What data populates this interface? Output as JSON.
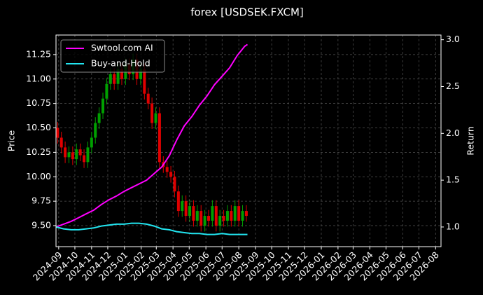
{
  "chart_data": {
    "type": "candlestick",
    "title": "forex [USDSEK.FXCM]",
    "ylabel": "Price",
    "y2label": "Return",
    "grid": true,
    "legend": "upper left",
    "up_color": "#00a000",
    "down_color": "#e00000",
    "xlim": [
      -5,
      709
    ],
    "xticks": [
      {
        "value": 0,
        "label": "2024-09"
      },
      {
        "value": 30,
        "label": "2024-10"
      },
      {
        "value": 61,
        "label": "2024-11"
      },
      {
        "value": 91,
        "label": "2024-12"
      },
      {
        "value": 122,
        "label": "2025-01"
      },
      {
        "value": 153,
        "label": "2025-02"
      },
      {
        "value": 181,
        "label": "2025-03"
      },
      {
        "value": 212,
        "label": "2025-04"
      },
      {
        "value": 242,
        "label": "2025-05"
      },
      {
        "value": 273,
        "label": "2025-06"
      },
      {
        "value": 303,
        "label": "2025-07"
      },
      {
        "value": 334,
        "label": "2025-08"
      },
      {
        "value": 365,
        "label": "2025-09"
      },
      {
        "value": 395,
        "label": "2025-10"
      },
      {
        "value": 426,
        "label": "2025-11"
      },
      {
        "value": 456,
        "label": "2025-12"
      },
      {
        "value": 487,
        "label": "2026-01"
      },
      {
        "value": 518,
        "label": "2026-02"
      },
      {
        "value": 546,
        "label": "2026-03"
      },
      {
        "value": 577,
        "label": "2026-04"
      },
      {
        "value": 607,
        "label": "2026-05"
      },
      {
        "value": 638,
        "label": "2026-06"
      },
      {
        "value": 668,
        "label": "2026-07"
      },
      {
        "value": 699,
        "label": "2026-08"
      }
    ],
    "ylim": [
      9.285,
      11.45
    ],
    "yticks": [
      {
        "value": 9.5,
        "label": "9.50"
      },
      9.75,
      {
        "value": 10,
        "label": "10.00"
      },
      10.25,
      {
        "value": 10.5,
        "label": "10.50"
      },
      10.75,
      {
        "value": 11,
        "label": "11.00"
      },
      11.25
    ],
    "y2lim": [
      0.79,
      3.05
    ],
    "y2ticks": [
      {
        "value": 1,
        "label": "1.0"
      },
      1.5,
      {
        "value": 2,
        "label": "2.0"
      },
      2.5,
      {
        "value": 3,
        "label": "3.0"
      }
    ],
    "candles": {
      "x": [
        -2,
        5,
        12,
        19,
        26,
        33,
        40,
        47,
        54,
        61,
        68,
        75,
        82,
        89,
        96,
        103,
        110,
        117,
        124,
        131,
        138,
        145,
        152,
        159,
        166,
        173,
        180,
        187,
        194,
        201,
        208,
        215,
        222,
        229,
        236,
        243,
        250,
        257,
        264,
        271,
        278,
        285,
        292,
        299,
        306,
        313,
        320,
        327,
        334,
        341,
        348
      ],
      "open": [
        10.5,
        10.4,
        10.3,
        10.2,
        10.25,
        10.18,
        10.28,
        10.22,
        10.15,
        10.3,
        10.4,
        10.55,
        10.65,
        10.8,
        10.95,
        11.05,
        10.95,
        11.1,
        11.0,
        11.15,
        11.05,
        11.2,
        11.0,
        11.1,
        10.85,
        10.75,
        10.55,
        10.65,
        10.15,
        10.1,
        10.05,
        10.0,
        9.85,
        9.65,
        9.75,
        9.6,
        9.7,
        9.55,
        9.65,
        9.5,
        9.6,
        9.55,
        9.7,
        9.5,
        9.6,
        9.55,
        9.65,
        9.55,
        9.7,
        9.55,
        9.65
      ],
      "high": [
        10.56,
        10.46,
        10.36,
        10.31,
        10.31,
        10.34,
        10.34,
        10.28,
        10.36,
        10.46,
        10.61,
        10.71,
        10.86,
        11.01,
        11.11,
        11.11,
        11.16,
        11.16,
        11.21,
        11.21,
        11.26,
        11.26,
        11.16,
        11.16,
        10.91,
        10.81,
        10.71,
        10.71,
        10.21,
        10.16,
        10.11,
        10.06,
        9.91,
        9.81,
        9.81,
        9.76,
        9.76,
        9.71,
        9.71,
        9.66,
        9.66,
        9.76,
        9.76,
        9.66,
        9.66,
        9.71,
        9.71,
        9.76,
        9.76,
        9.71,
        9.71
      ],
      "low": [
        10.34,
        10.24,
        10.14,
        10.14,
        10.12,
        10.12,
        10.16,
        10.09,
        10.09,
        10.24,
        10.34,
        10.49,
        10.59,
        10.74,
        10.89,
        10.89,
        10.89,
        10.94,
        10.94,
        10.99,
        10.99,
        10.94,
        10.94,
        10.79,
        10.69,
        10.49,
        10.49,
        10.09,
        10.04,
        9.99,
        9.94,
        9.79,
        9.59,
        9.59,
        9.54,
        9.54,
        9.49,
        9.49,
        9.44,
        9.44,
        9.49,
        9.49,
        9.44,
        9.44,
        9.49,
        9.49,
        9.49,
        9.49,
        9.49,
        9.49,
        9.54
      ],
      "close": [
        10.4,
        10.3,
        10.2,
        10.25,
        10.18,
        10.28,
        10.22,
        10.15,
        10.3,
        10.4,
        10.55,
        10.65,
        10.8,
        10.95,
        11.05,
        10.95,
        11.1,
        11.0,
        11.15,
        11.05,
        11.2,
        11.0,
        11.1,
        10.85,
        10.75,
        10.55,
        10.65,
        10.15,
        10.1,
        10.05,
        10.0,
        9.85,
        9.65,
        9.75,
        9.6,
        9.7,
        9.55,
        9.65,
        9.5,
        9.6,
        9.55,
        9.7,
        9.5,
        9.6,
        9.55,
        9.65,
        9.55,
        9.7,
        9.55,
        9.65,
        9.6
      ]
    },
    "x": [
      -5,
      9,
      23,
      37,
      51,
      65,
      79,
      93,
      107,
      121,
      135,
      149,
      163,
      177,
      191,
      205,
      219,
      233,
      247,
      261,
      275,
      289,
      303,
      317,
      331,
      345,
      350
    ],
    "series": [
      {
        "name": "Swtool.com AI",
        "color": "#ff00ff",
        "axis": "y2",
        "values": [
          1.0,
          1.03,
          1.06,
          1.1,
          1.14,
          1.18,
          1.24,
          1.29,
          1.33,
          1.38,
          1.42,
          1.46,
          1.5,
          1.57,
          1.64,
          1.76,
          1.93,
          2.08,
          2.18,
          2.3,
          2.4,
          2.52,
          2.61,
          2.7,
          2.83,
          2.93,
          2.95
        ]
      },
      {
        "name": "Buy-and-Hold",
        "color": "#22e5f0",
        "axis": "y2",
        "values": [
          1.0,
          0.98,
          0.97,
          0.97,
          0.98,
          0.99,
          1.01,
          1.02,
          1.03,
          1.03,
          1.04,
          1.04,
          1.03,
          1.01,
          0.98,
          0.97,
          0.95,
          0.94,
          0.93,
          0.93,
          0.92,
          0.92,
          0.93,
          0.92,
          0.92,
          0.92,
          0.92
        ]
      }
    ]
  }
}
